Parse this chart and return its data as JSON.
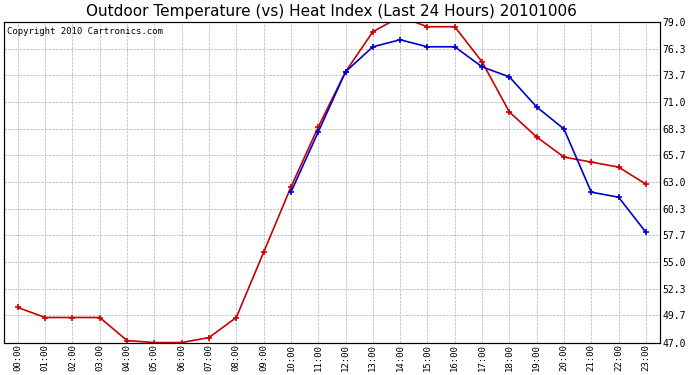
{
  "title": "Outdoor Temperature (vs) Heat Index (Last 24 Hours) 20101006",
  "copyright": "Copyright 2010 Cartronics.com",
  "hours": [
    "00:00",
    "01:00",
    "02:00",
    "03:00",
    "04:00",
    "05:00",
    "06:00",
    "07:00",
    "08:00",
    "09:00",
    "10:00",
    "11:00",
    "12:00",
    "13:00",
    "14:00",
    "15:00",
    "16:00",
    "17:00",
    "18:00",
    "19:00",
    "20:00",
    "21:00",
    "22:00",
    "23:00"
  ],
  "temp": [
    50.5,
    49.5,
    49.5,
    49.5,
    47.2,
    47.0,
    47.0,
    47.5,
    49.5,
    56.0,
    62.5,
    68.5,
    74.0,
    78.0,
    79.5,
    78.5,
    78.5,
    75.0,
    70.0,
    67.5,
    65.5,
    65.0,
    64.5,
    62.8
  ],
  "heat_index": [
    null,
    null,
    null,
    null,
    null,
    null,
    null,
    null,
    null,
    null,
    62.0,
    68.0,
    74.0,
    76.5,
    77.2,
    76.5,
    76.5,
    74.5,
    73.5,
    70.5,
    68.3,
    62.0,
    61.5,
    58.0
  ],
  "ylim_min": 47.0,
  "ylim_max": 79.0,
  "yticks": [
    47.0,
    49.7,
    52.3,
    55.0,
    57.7,
    60.3,
    63.0,
    65.7,
    68.3,
    71.0,
    73.7,
    76.3,
    79.0
  ],
  "temp_color": "#cc0000",
  "heat_color": "#0000cc",
  "bg_color": "#ffffff",
  "grid_color": "#b0b0b0",
  "title_fontsize": 11,
  "copyright_fontsize": 6.5
}
